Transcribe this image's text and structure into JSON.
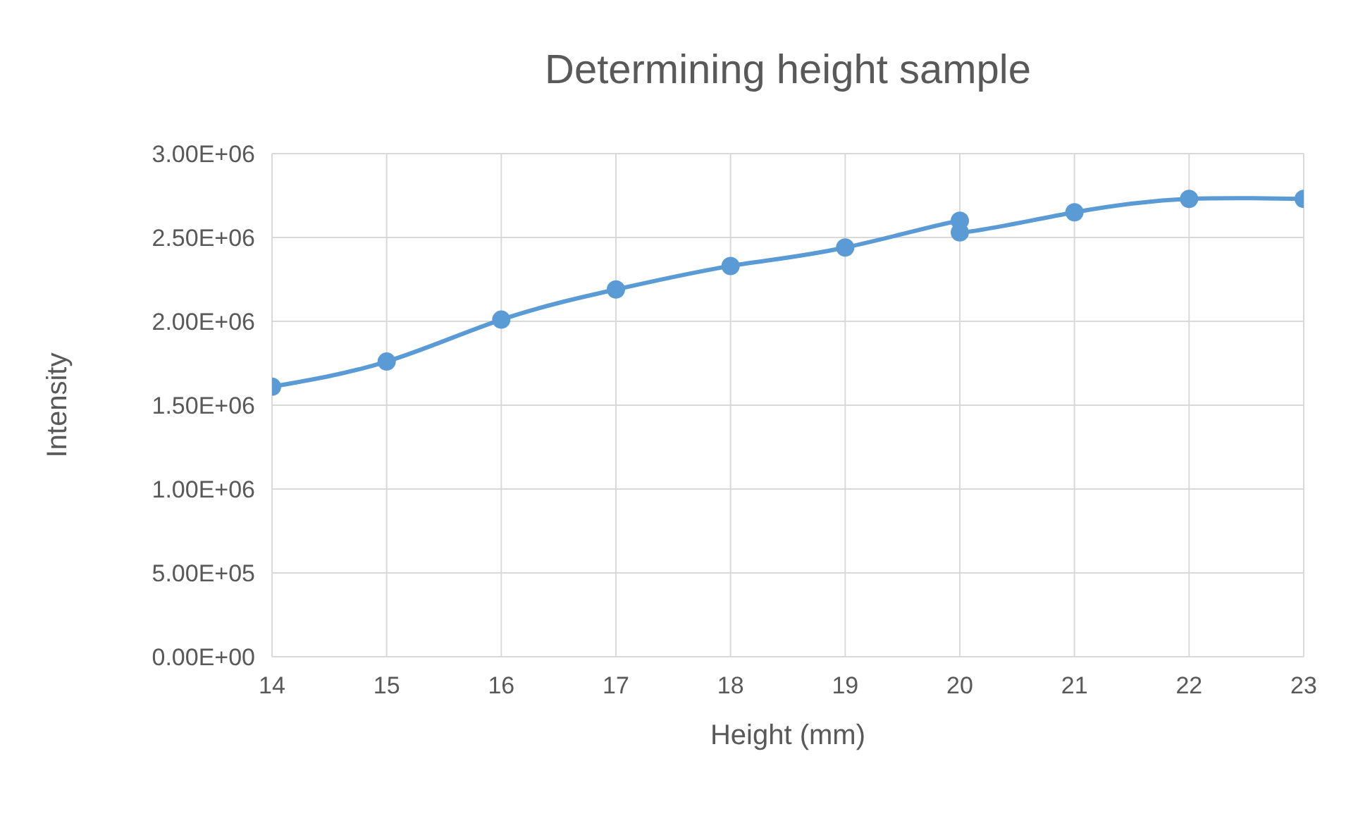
{
  "chart_data": {
    "type": "line",
    "title": "Determining height sample",
    "xlabel": "Height (mm)",
    "ylabel": "Intensity",
    "x": [
      14,
      15,
      16,
      17,
      18,
      19,
      20,
      20,
      21,
      22,
      23
    ],
    "values": [
      1610000,
      1760000,
      2010000,
      2190000,
      2330000,
      2440000,
      2600000,
      2530000,
      2650000,
      2730000,
      2730000
    ],
    "color": "#5b9bd5",
    "marker": "circle",
    "grid": true,
    "xlim": [
      14,
      23
    ],
    "xticks": [
      14,
      15,
      16,
      17,
      18,
      19,
      20,
      21,
      22,
      23
    ],
    "ylim": [
      0,
      3000000
    ],
    "yticks": [
      {
        "value": 0,
        "label": "0.00E+00"
      },
      {
        "value": 500000,
        "label": "5.00E+05"
      },
      {
        "value": 1000000,
        "label": "1.00E+06"
      },
      {
        "value": 1500000,
        "label": "1.50E+06"
      },
      {
        "value": 2000000,
        "label": "2.00E+06"
      },
      {
        "value": 2500000,
        "label": "2.50E+06"
      },
      {
        "value": 3000000,
        "label": "3.00E+06"
      }
    ]
  }
}
